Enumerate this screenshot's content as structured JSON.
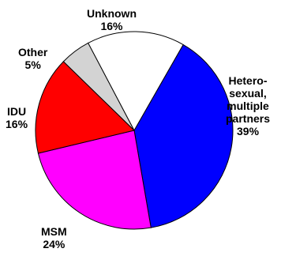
{
  "chart_data": {
    "type": "pie",
    "title": "",
    "slices": [
      {
        "label_lines": [
          "Hetero-",
          "sexual,",
          "multiple",
          "partners"
        ],
        "value": 39,
        "value_text": "39%",
        "color": "#0000ff"
      },
      {
        "label_lines": [
          "MSM"
        ],
        "value": 24,
        "value_text": "24%",
        "color": "#ff00ff"
      },
      {
        "label_lines": [
          "IDU"
        ],
        "value": 16,
        "value_text": "16%",
        "color": "#ff0000"
      },
      {
        "label_lines": [
          "Other"
        ],
        "value": 5,
        "value_text": "5%",
        "color": "#d3d3d3"
      },
      {
        "label_lines": [
          "Unknown"
        ],
        "value": 16,
        "value_text": "16%",
        "color": "#ffffff"
      }
    ]
  }
}
